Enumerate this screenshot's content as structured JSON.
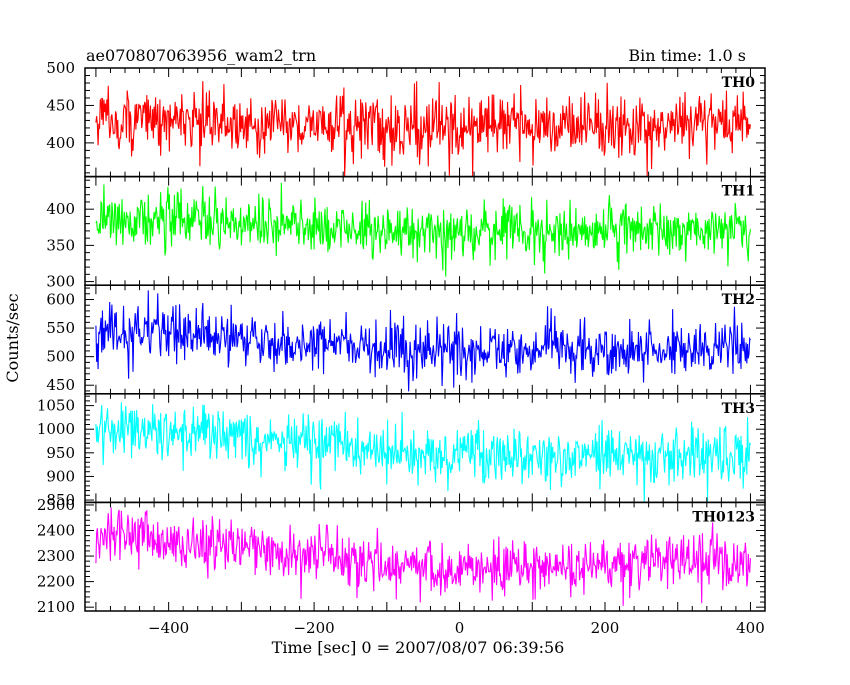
{
  "header": {
    "title": "ae070807063956_wam2_trn",
    "bin_time": "Bin time: 1.0 s"
  },
  "chart_data": {
    "type": "line",
    "title": "ae070807063956_wam2_trn",
    "subtitle": "Bin time: 1.0 s",
    "xlabel": "Time [sec] 0 = 2007/08/07 06:39:56",
    "ylabel": "Counts/sec",
    "xlim": [
      -515,
      420
    ],
    "data_x_range": [
      -500,
      400
    ],
    "bin_time_s": 1.0,
    "x_ticks": [
      -400,
      -200,
      0,
      200,
      400
    ],
    "x_tick_labels": [
      "−400",
      "−200",
      "0",
      "200",
      "400"
    ],
    "grid": false,
    "panels": [
      {
        "name": "TH0",
        "color": "#ff0000",
        "ylim": [
          355,
          500
        ],
        "y_ticks": [
          400,
          450,
          500
        ],
        "y_tick_labels": [
          "400",
          "450",
          "500"
        ],
        "mean_start": 432,
        "mean_end": 428,
        "mean_mid": 420,
        "noise_sd": 21,
        "observed_min": 355,
        "observed_max": 500
      },
      {
        "name": "TH1",
        "color": "#00ff00",
        "ylim": [
          295,
          445
        ],
        "y_ticks": [
          300,
          350,
          400
        ],
        "y_tick_labels": [
          "300",
          "350",
          "400"
        ],
        "mean_start": 390,
        "mean_end": 372,
        "mean_mid": 368,
        "noise_sd": 19,
        "observed_min": 293,
        "observed_max": 445
      },
      {
        "name": "TH2",
        "color": "#0000ff",
        "ylim": [
          435,
          625
        ],
        "y_ticks": [
          450,
          500,
          550,
          600
        ],
        "y_tick_labels": [
          "450",
          "500",
          "550",
          "600"
        ],
        "mean_start": 548,
        "mean_end": 518,
        "mean_mid": 510,
        "noise_sd": 24,
        "observed_min": 437,
        "observed_max": 628
      },
      {
        "name": "TH3",
        "color": "#00ffff",
        "ylim": [
          845,
          1075
        ],
        "y_ticks": [
          850,
          900,
          950,
          1000,
          1050
        ],
        "y_tick_labels": [
          "850",
          "900",
          "950",
          "1000",
          "1050"
        ],
        "mean_start": 1010,
        "mean_end": 945,
        "mean_mid": 945,
        "noise_sd": 30,
        "observed_min": 845,
        "observed_max": 1075
      },
      {
        "name": "TH0123",
        "color": "#ff00ff",
        "ylim": [
          2085,
          2510
        ],
        "y_ticks": [
          2100,
          2200,
          2300,
          2400,
          2500
        ],
        "y_tick_labels": [
          "2100",
          "2200",
          "2300",
          "2400",
          "2500"
        ],
        "mean_start": 2390,
        "mean_end": 2265,
        "mean_mid": 2258,
        "noise_sd": 55,
        "observed_min": 2085,
        "observed_max": 2510
      }
    ]
  }
}
